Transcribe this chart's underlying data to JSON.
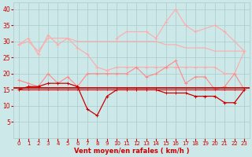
{
  "x": [
    0,
    1,
    2,
    3,
    4,
    5,
    6,
    7,
    8,
    9,
    10,
    11,
    12,
    13,
    14,
    15,
    16,
    17,
    18,
    19,
    20,
    21,
    22,
    23
  ],
  "s_pink_top_flat": [
    29,
    30,
    27,
    31,
    31,
    31,
    30,
    30,
    30,
    30,
    30,
    30,
    30,
    30,
    30,
    29,
    29,
    28,
    28,
    28,
    27,
    27,
    27,
    27
  ],
  "s_pink_top_decline": [
    29,
    31,
    26,
    32,
    29,
    31,
    28,
    26,
    22,
    21,
    22,
    22,
    22,
    22,
    22,
    22,
    22,
    22,
    22,
    22,
    22,
    20,
    20,
    27
  ],
  "s_pink_spiky": [
    null,
    null,
    null,
    null,
    null,
    null,
    null,
    null,
    null,
    null,
    31,
    33,
    null,
    33,
    31,
    36,
    40,
    35,
    33,
    null,
    35,
    33,
    null,
    27
  ],
  "s_pink_mid": [
    18,
    17,
    16,
    20,
    17,
    19,
    16,
    20,
    20,
    20,
    20,
    20,
    22,
    19,
    20,
    22,
    24,
    17,
    19,
    19,
    15,
    16,
    20,
    15
  ],
  "s_red_flat": [
    15,
    15,
    15,
    15,
    15,
    15,
    15,
    15,
    15,
    15,
    15,
    15,
    15,
    15,
    15,
    15,
    15,
    15,
    15,
    15,
    15,
    15,
    15,
    15
  ],
  "s_red_decline": [
    15,
    16,
    16,
    17,
    17,
    17,
    16,
    9,
    7,
    13,
    15,
    15,
    15,
    15,
    15,
    14,
    14,
    14,
    13,
    13,
    13,
    11,
    11,
    15
  ],
  "background_color": "#cce8e8",
  "grid_color": "#aacccc",
  "color_dark_red": "#cc0000",
  "color_med_red": "#ee2222",
  "color_light_pink": "#ffaaaa",
  "xlabel": "Vent moyen/en rafales ( km/h )",
  "ylim": [
    0,
    42
  ],
  "xlim": [
    -0.5,
    23.5
  ],
  "yticks": [
    5,
    10,
    15,
    20,
    25,
    30,
    35,
    40
  ],
  "xticks": [
    0,
    1,
    2,
    3,
    4,
    5,
    6,
    7,
    8,
    9,
    10,
    11,
    12,
    13,
    14,
    15,
    16,
    17,
    18,
    19,
    20,
    21,
    22,
    23
  ]
}
